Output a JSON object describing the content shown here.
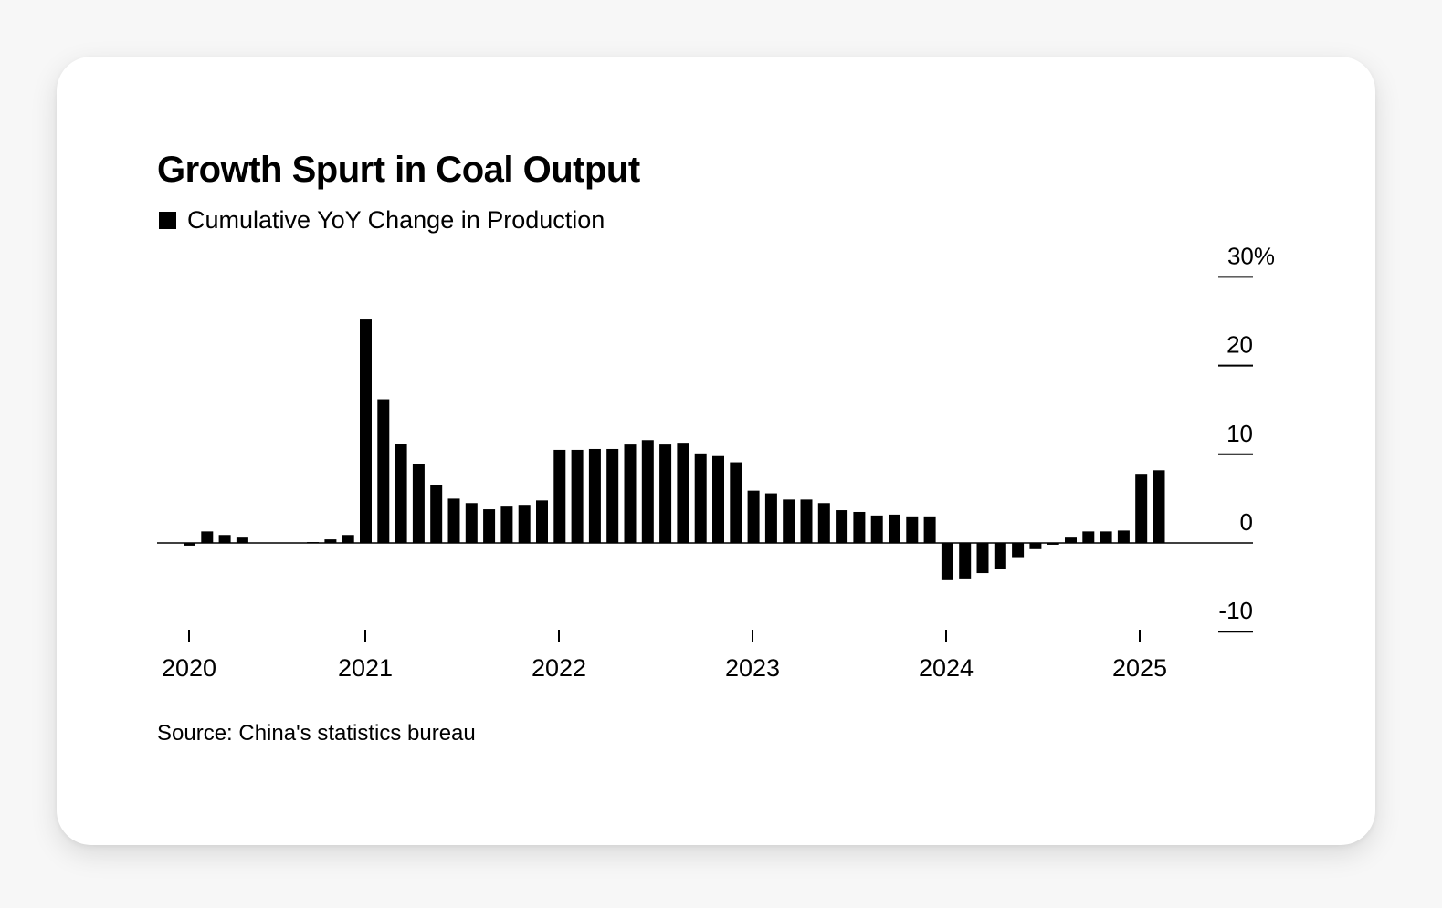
{
  "chart_data": {
    "type": "bar",
    "title": "Growth Spurt in Coal Output",
    "legend": [
      {
        "name": "Cumulative YoY Change in Production",
        "color": "#000000"
      }
    ],
    "source": "Source: China's statistics bureau",
    "ylim": [
      -10,
      30
    ],
    "yticks": [
      {
        "value": 30,
        "label": "30%"
      },
      {
        "value": 20,
        "label": "20"
      },
      {
        "value": 10,
        "label": "10"
      },
      {
        "value": 0,
        "label": "0"
      },
      {
        "value": -10,
        "label": "-10"
      }
    ],
    "xticks": [
      "2020",
      "2021",
      "2022",
      "2023",
      "2024",
      "2025"
    ],
    "grid": false,
    "y_axis_position": "right",
    "bar_color": "#000000",
    "series": [
      {
        "name": "Cumulative YoY Change in Production",
        "values": [
          -0.3,
          1.3,
          0.9,
          0.6,
          0,
          0,
          0,
          0.1,
          0.4,
          0.9,
          25.2,
          16.2,
          11.2,
          8.9,
          6.5,
          5.0,
          4.5,
          3.8,
          4.1,
          4.3,
          4.8,
          10.5,
          10.5,
          10.6,
          10.6,
          11.1,
          11.6,
          11.1,
          11.3,
          10.1,
          9.8,
          9.1,
          5.9,
          5.6,
          4.9,
          4.9,
          4.5,
          3.7,
          3.5,
          3.1,
          3.2,
          3.0,
          3.0,
          -4.2,
          -4.0,
          -3.4,
          -2.9,
          -1.6,
          -0.7,
          -0.2,
          0.6,
          1.3,
          1.3,
          1.4,
          7.8,
          8.2
        ]
      }
    ]
  }
}
